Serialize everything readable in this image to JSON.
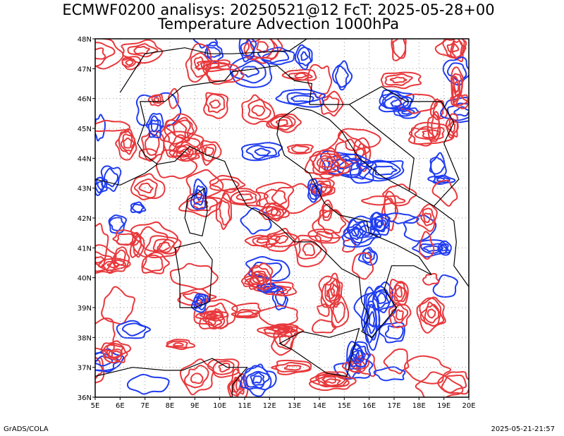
{
  "title": {
    "line1": "ECMWF0200 analisys: 20250521@12 FcT: 2025-05-28+00",
    "line2": "Temperature Advection 1000hPa"
  },
  "footer": {
    "left": "GrADS/COLA",
    "right": "2025-05-21-21:57"
  },
  "map": {
    "lon_range": [
      5,
      20
    ],
    "lat_range": [
      36,
      48
    ],
    "lon_ticks": [
      "5E",
      "6E",
      "7E",
      "8E",
      "9E",
      "10E",
      "11E",
      "12E",
      "13E",
      "14E",
      "15E",
      "16E",
      "17E",
      "18E",
      "19E",
      "20E"
    ],
    "lat_ticks": [
      "36N",
      "37N",
      "38N",
      "39N",
      "40N",
      "41N",
      "42N",
      "43N",
      "44N",
      "45N",
      "46N",
      "47N",
      "48N"
    ],
    "grid": "dotted",
    "colors": {
      "warm_advection": "#e8383c",
      "cold_advection": "#1f3cf0",
      "coastline": "#000000"
    }
  }
}
